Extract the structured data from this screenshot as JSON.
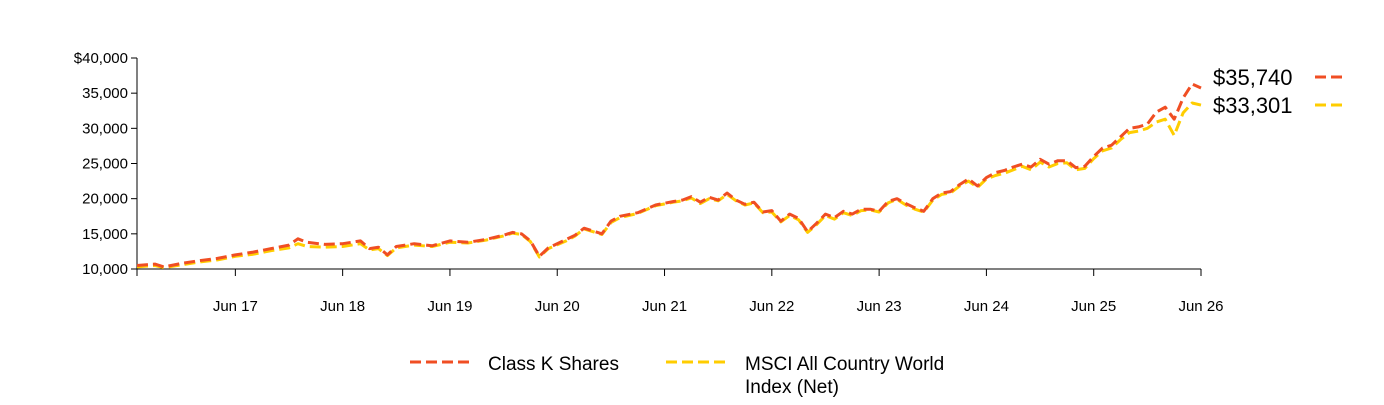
{
  "chart_data": {
    "type": "line",
    "y_axis": {
      "min": 10000,
      "max": 40000,
      "ticks": [
        10000,
        15000,
        20000,
        25000,
        30000,
        35000,
        40000
      ],
      "tick_labels": [
        "10,000",
        "15,000",
        "20,000",
        "25,000",
        "30,000",
        "35,000",
        "$40,000"
      ]
    },
    "x_axis": {
      "min": 0,
      "max": 119,
      "tick_labels": [
        "Jun 17",
        "Jun 18",
        "Jun 19",
        "Jun 20",
        "Jun 21",
        "Jun 22",
        "Jun 23",
        "Jun 24",
        "Jun 25",
        "Jun 26"
      ],
      "tick_positions": [
        11,
        23,
        35,
        47,
        59,
        71,
        83,
        95,
        107,
        119
      ]
    },
    "series": [
      {
        "name": "Class K Shares",
        "color": "#f04e23",
        "end_label": "$35,740",
        "points": [
          [
            0,
            10500
          ],
          [
            2,
            10700
          ],
          [
            3,
            10300
          ],
          [
            5,
            10800
          ],
          [
            7,
            11200
          ],
          [
            9,
            11500
          ],
          [
            11,
            12000
          ],
          [
            13,
            12400
          ],
          [
            15,
            12900
          ],
          [
            17,
            13400
          ],
          [
            18,
            14300
          ],
          [
            19,
            13800
          ],
          [
            21,
            13500
          ],
          [
            23,
            13600
          ],
          [
            25,
            14000
          ],
          [
            26,
            12900
          ],
          [
            27,
            13100
          ],
          [
            28,
            12000
          ],
          [
            29,
            13200
          ],
          [
            31,
            13600
          ],
          [
            33,
            13300
          ],
          [
            35,
            14000
          ],
          [
            37,
            13800
          ],
          [
            39,
            14200
          ],
          [
            41,
            14800
          ],
          [
            42,
            15200
          ],
          [
            43,
            15000
          ],
          [
            44,
            14000
          ],
          [
            45,
            11800
          ],
          [
            46,
            13000
          ],
          [
            48,
            14200
          ],
          [
            49,
            14800
          ],
          [
            50,
            15800
          ],
          [
            52,
            15000
          ],
          [
            53,
            16800
          ],
          [
            54,
            17500
          ],
          [
            56,
            18000
          ],
          [
            58,
            19100
          ],
          [
            60,
            19600
          ],
          [
            61,
            19800
          ],
          [
            62,
            20300
          ],
          [
            63,
            19500
          ],
          [
            64,
            20200
          ],
          [
            65,
            19800
          ],
          [
            66,
            20800
          ],
          [
            67,
            19800
          ],
          [
            68,
            19200
          ],
          [
            69,
            19500
          ],
          [
            70,
            18100
          ],
          [
            71,
            18300
          ],
          [
            72,
            16800
          ],
          [
            73,
            17800
          ],
          [
            74,
            17200
          ],
          [
            75,
            15300
          ],
          [
            76,
            16500
          ],
          [
            77,
            17800
          ],
          [
            78,
            17300
          ],
          [
            79,
            18200
          ],
          [
            80,
            17800
          ],
          [
            81,
            18500
          ],
          [
            82,
            18500
          ],
          [
            83,
            18200
          ],
          [
            84,
            19600
          ],
          [
            85,
            20000
          ],
          [
            86,
            19300
          ],
          [
            87,
            18700
          ],
          [
            88,
            18200
          ],
          [
            89,
            20000
          ],
          [
            90,
            20800
          ],
          [
            91,
            21000
          ],
          [
            92,
            22000
          ],
          [
            93,
            22800
          ],
          [
            94,
            21800
          ],
          [
            95,
            23000
          ],
          [
            96,
            23700
          ],
          [
            97,
            24000
          ],
          [
            98,
            24500
          ],
          [
            99,
            24900
          ],
          [
            100,
            24500
          ],
          [
            101,
            25600
          ],
          [
            102,
            24900
          ],
          [
            103,
            25400
          ],
          [
            104,
            25400
          ],
          [
            105,
            24400
          ],
          [
            106,
            24600
          ],
          [
            107,
            26000
          ],
          [
            108,
            27200
          ],
          [
            109,
            27600
          ],
          [
            110,
            28800
          ],
          [
            111,
            30000
          ],
          [
            112,
            30200
          ],
          [
            113,
            30600
          ],
          [
            114,
            32300
          ],
          [
            115,
            33000
          ],
          [
            116,
            31300
          ],
          [
            117,
            34300
          ],
          [
            118,
            36300
          ],
          [
            119,
            35740
          ]
        ]
      },
      {
        "name": "MSCI All Country World Index (Net)",
        "color": "#ffcd00",
        "end_label": "$33,301",
        "points": [
          [
            0,
            10300
          ],
          [
            2,
            10500
          ],
          [
            3,
            10200
          ],
          [
            5,
            10600
          ],
          [
            7,
            11000
          ],
          [
            9,
            11300
          ],
          [
            11,
            11800
          ],
          [
            13,
            12100
          ],
          [
            15,
            12600
          ],
          [
            17,
            13000
          ],
          [
            18,
            13600
          ],
          [
            19,
            13200
          ],
          [
            21,
            13100
          ],
          [
            23,
            13200
          ],
          [
            25,
            13600
          ],
          [
            26,
            12700
          ],
          [
            27,
            12900
          ],
          [
            28,
            11900
          ],
          [
            29,
            13000
          ],
          [
            31,
            13400
          ],
          [
            33,
            13200
          ],
          [
            35,
            13800
          ],
          [
            37,
            13700
          ],
          [
            39,
            14100
          ],
          [
            41,
            14700
          ],
          [
            42,
            15100
          ],
          [
            43,
            14900
          ],
          [
            44,
            13900
          ],
          [
            45,
            11700
          ],
          [
            46,
            12900
          ],
          [
            48,
            14000
          ],
          [
            49,
            14700
          ],
          [
            50,
            15700
          ],
          [
            52,
            14900
          ],
          [
            53,
            16600
          ],
          [
            54,
            17300
          ],
          [
            56,
            17900
          ],
          [
            58,
            19000
          ],
          [
            60,
            19500
          ],
          [
            61,
            19700
          ],
          [
            62,
            20100
          ],
          [
            63,
            19300
          ],
          [
            64,
            20000
          ],
          [
            65,
            19700
          ],
          [
            66,
            20600
          ],
          [
            67,
            19700
          ],
          [
            68,
            19100
          ],
          [
            69,
            19400
          ],
          [
            70,
            18000
          ],
          [
            71,
            18100
          ],
          [
            72,
            16700
          ],
          [
            73,
            17600
          ],
          [
            74,
            17000
          ],
          [
            75,
            15200
          ],
          [
            76,
            16300
          ],
          [
            77,
            17600
          ],
          [
            78,
            17100
          ],
          [
            79,
            18000
          ],
          [
            80,
            17600
          ],
          [
            81,
            18300
          ],
          [
            82,
            18400
          ],
          [
            83,
            18100
          ],
          [
            84,
            19400
          ],
          [
            85,
            19900
          ],
          [
            86,
            19100
          ],
          [
            87,
            18500
          ],
          [
            88,
            18100
          ],
          [
            89,
            19800
          ],
          [
            90,
            20600
          ],
          [
            91,
            20800
          ],
          [
            92,
            21800
          ],
          [
            93,
            22500
          ],
          [
            94,
            21600
          ],
          [
            95,
            22800
          ],
          [
            96,
            23300
          ],
          [
            97,
            23600
          ],
          [
            98,
            24100
          ],
          [
            99,
            24600
          ],
          [
            100,
            24100
          ],
          [
            101,
            25200
          ],
          [
            102,
            24500
          ],
          [
            103,
            25000
          ],
          [
            104,
            25100
          ],
          [
            105,
            24100
          ],
          [
            106,
            24300
          ],
          [
            107,
            25700
          ],
          [
            108,
            26800
          ],
          [
            109,
            27200
          ],
          [
            110,
            28400
          ],
          [
            111,
            29400
          ],
          [
            112,
            29600
          ],
          [
            113,
            30000
          ],
          [
            114,
            30900
          ],
          [
            115,
            31300
          ],
          [
            116,
            29000
          ],
          [
            117,
            32200
          ],
          [
            118,
            33600
          ],
          [
            119,
            33301
          ]
        ]
      }
    ],
    "legend": {
      "placement": "bottom",
      "items": [
        {
          "label": "Class K Shares",
          "color": "#f04e23"
        },
        {
          "label_lines": [
            "MSCI All Country World",
            "Index (Net)"
          ],
          "color": "#ffcd00"
        }
      ]
    }
  }
}
